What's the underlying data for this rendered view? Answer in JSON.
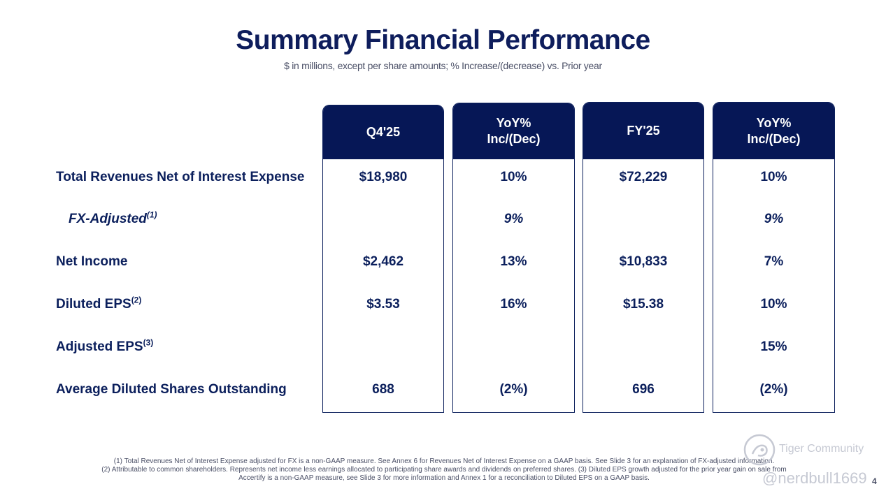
{
  "title": "Summary Financial Performance",
  "subtitle": "$ in millions, except per share amounts; % Increase/(decrease) vs. Prior year",
  "columns": [
    {
      "header": "Q4'25"
    },
    {
      "header": "YoY%\nInc/(Dec)"
    },
    {
      "header": "FY'25"
    },
    {
      "header": "YoY%\nInc/(Dec)"
    }
  ],
  "rows": [
    {
      "label": "Total Revenues Net of Interest Expense",
      "note": "",
      "values": [
        "$18,980",
        "10%",
        "$72,229",
        "10%"
      ]
    },
    {
      "label": "FX-Adjusted",
      "note": "(1)",
      "values": [
        "",
        "9%",
        "",
        "9%"
      ]
    },
    {
      "label": "Net Income",
      "note": "",
      "values": [
        "$2,462",
        "13%",
        "$10,833",
        "7%"
      ]
    },
    {
      "label": "Diluted EPS",
      "note": "(2)",
      "values": [
        "$3.53",
        "16%",
        "$15.38",
        "10%"
      ]
    },
    {
      "label": "Adjusted EPS",
      "note": "(3)",
      "values": [
        "",
        "",
        "",
        "15%"
      ]
    },
    {
      "label": "Average Diluted Shares Outstanding",
      "note": "",
      "values": [
        "688",
        "(2%)",
        "696",
        "(2%)"
      ]
    }
  ],
  "footnotes": [
    "(1) Total Revenues Net of Interest Expense adjusted for FX is a non-GAAP measure.  See Annex 6 for Revenues Net of Interest Expense on a GAAP basis. See Slide 3 for an explanation of FX-adjusted information.",
    "(2) Attributable to common shareholders. Represents net income less earnings allocated to participating share awards and dividends on preferred shares. (3) Diluted EPS growth adjusted for the prior year gain on sale from",
    "Accertify is a non-GAAP measure, see Slide 3 for more information and Annex 1 for a reconciliation to Diluted EPS on a GAAP basis."
  ],
  "watermark": {
    "line1": "Tiger Community",
    "line2": "@nerdbull1669",
    "icon": "tiger-logo-icon"
  },
  "page_number": "4",
  "colors": {
    "navy": "#061756",
    "text": "#0b1f5c"
  }
}
